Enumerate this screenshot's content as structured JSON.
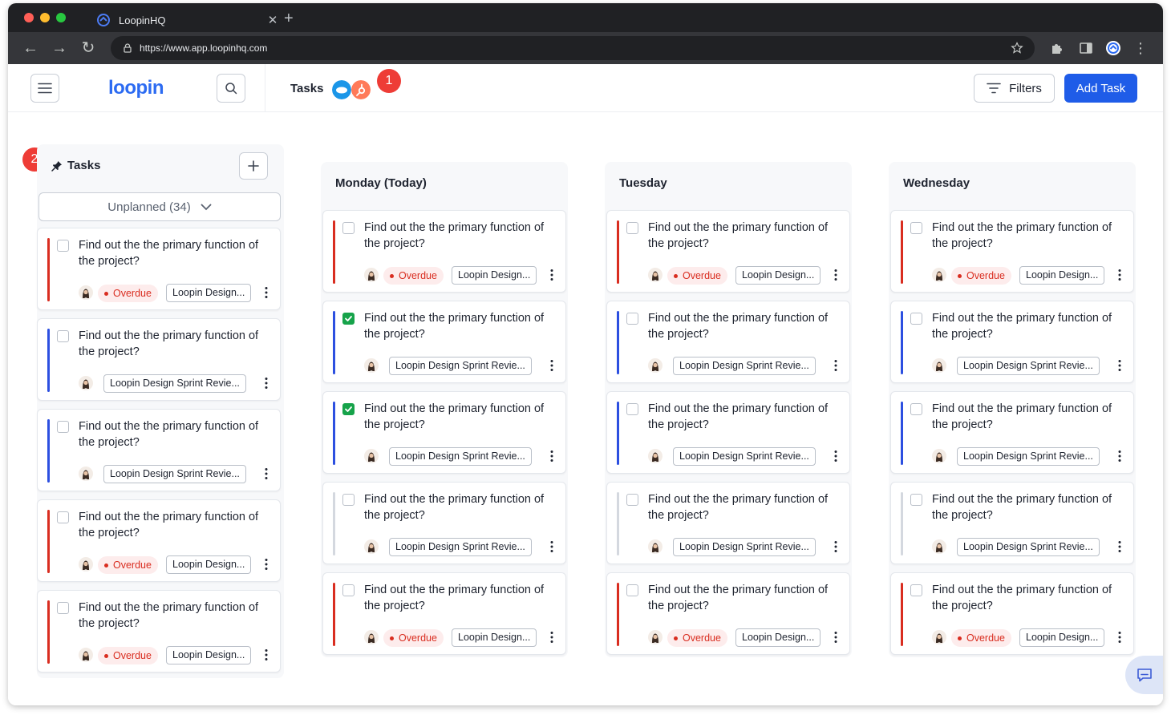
{
  "browser": {
    "tab_title": "LoopinHQ",
    "url": "https://www.app.loopinhq.com"
  },
  "header": {
    "logo": "loopin",
    "page_title": "Tasks",
    "filters_label": "Filters",
    "add_task_label": "Add Task"
  },
  "annotations": [
    "1",
    "2"
  ],
  "sidebar": {
    "title": "Tasks",
    "dropdown_label": "Unplanned (34)",
    "cards": [
      {
        "title": "Find out the the primary function of the project?",
        "bar": "red",
        "checked": false,
        "overdue": "Overdue",
        "project": "Loopin Design..."
      },
      {
        "title": "Find out the the primary function of the project?",
        "bar": "blue",
        "checked": false,
        "overdue": "",
        "project": "Loopin Design Sprint Revie..."
      },
      {
        "title": "Find out the the primary function of the project?",
        "bar": "blue",
        "checked": false,
        "overdue": "",
        "project": "Loopin Design Sprint Revie..."
      },
      {
        "title": "Find out the the primary function of the project?",
        "bar": "red",
        "checked": false,
        "overdue": "Overdue",
        "project": "Loopin Design..."
      },
      {
        "title": "Find out the the primary function of the project?",
        "bar": "red",
        "checked": false,
        "overdue": "Overdue",
        "project": "Loopin Design..."
      }
    ]
  },
  "columns": [
    {
      "title": "Monday (Today)",
      "cards": [
        {
          "title": "Find out the the primary function of the project?",
          "bar": "red",
          "checked": false,
          "overdue": "Overdue",
          "project": "Loopin Design..."
        },
        {
          "title": "Find out the the primary function of the project?",
          "bar": "blue",
          "checked": true,
          "overdue": "",
          "project": "Loopin Design Sprint Revie..."
        },
        {
          "title": "Find out the the primary function of the project?",
          "bar": "blue",
          "checked": true,
          "overdue": "",
          "project": "Loopin Design Sprint Revie..."
        },
        {
          "title": "Find out the the primary function of the project?",
          "bar": "grey",
          "checked": false,
          "overdue": "",
          "project": "Loopin Design Sprint Revie..."
        },
        {
          "title": "Find out the the primary function of the project?",
          "bar": "red",
          "checked": false,
          "overdue": "Overdue",
          "project": "Loopin Design..."
        }
      ]
    },
    {
      "title": "Tuesday",
      "cards": [
        {
          "title": "Find out the the primary function of the project?",
          "bar": "red",
          "checked": false,
          "overdue": "Overdue",
          "project": "Loopin Design..."
        },
        {
          "title": "Find out the the primary function of the project?",
          "bar": "blue",
          "checked": false,
          "overdue": "",
          "project": "Loopin Design Sprint Revie..."
        },
        {
          "title": "Find out the the primary function of the project?",
          "bar": "blue",
          "checked": false,
          "overdue": "",
          "project": "Loopin Design Sprint Revie..."
        },
        {
          "title": "Find out the the primary function of the project?",
          "bar": "grey",
          "checked": false,
          "overdue": "",
          "project": "Loopin Design Sprint Revie..."
        },
        {
          "title": "Find out the the primary function of the project?",
          "bar": "red",
          "checked": false,
          "overdue": "Overdue",
          "project": "Loopin Design..."
        }
      ]
    },
    {
      "title": "Wednesday",
      "cards": [
        {
          "title": "Find out the the primary function of the project?",
          "bar": "red",
          "checked": false,
          "overdue": "Overdue",
          "project": "Loopin Design..."
        },
        {
          "title": "Find out the the primary function of the project?",
          "bar": "blue",
          "checked": false,
          "overdue": "",
          "project": "Loopin Design Sprint Revie..."
        },
        {
          "title": "Find out the the primary function of the project?",
          "bar": "blue",
          "checked": false,
          "overdue": "",
          "project": "Loopin Design Sprint Revie..."
        },
        {
          "title": "Find out the the primary function of the project?",
          "bar": "grey",
          "checked": false,
          "overdue": "",
          "project": "Loopin Design Sprint Revie..."
        },
        {
          "title": "Find out the the primary function of the project?",
          "bar": "red",
          "checked": false,
          "overdue": "Overdue",
          "project": "Loopin Design..."
        }
      ]
    }
  ],
  "colors": {
    "accent": "#1f5ce8",
    "overdue": "#d92d20",
    "bar_red": "#d92d20",
    "bar_blue": "#2c4fe0",
    "bar_grey": "#d4d8df",
    "checked": "#16a34a",
    "annotation": "#ee3c36"
  },
  "icons": {
    "menu": "hamburger-icon",
    "search": "search-icon",
    "filter": "filter-icon",
    "pin": "pin-icon",
    "plus": "plus-icon",
    "chevron": "chevron-down-icon",
    "more": "kebab-icon",
    "chat": "chat-icon"
  }
}
